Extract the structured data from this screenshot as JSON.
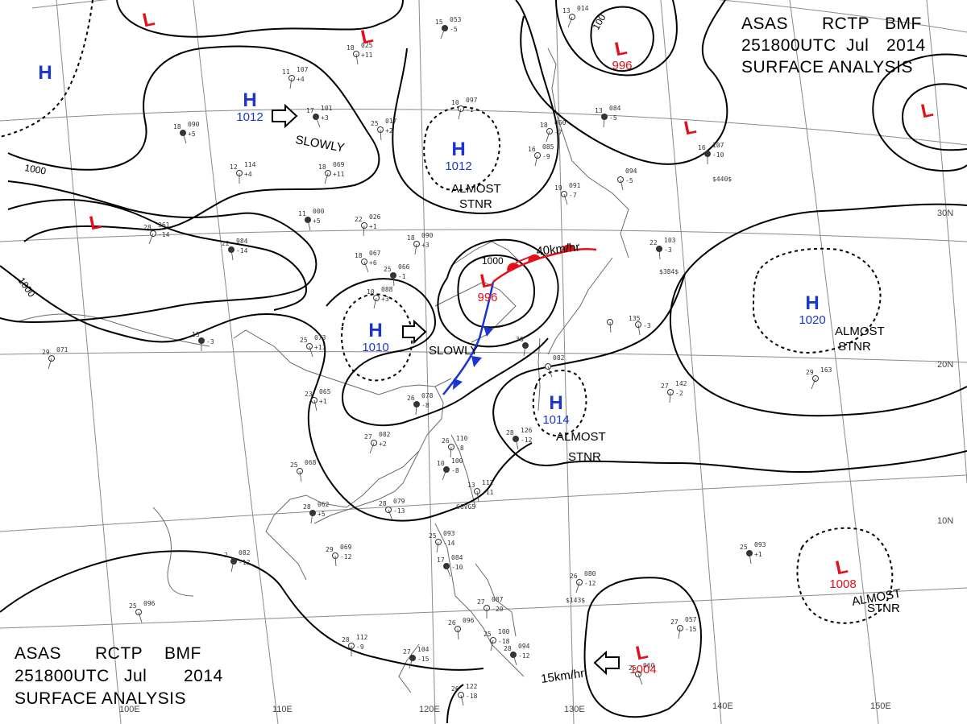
{
  "header_top": {
    "agency": "ASAS",
    "station": "RCTP",
    "office": "BMF",
    "time": "251800UTC",
    "month": "Jul",
    "year": "2014",
    "title": "SURFACE ANALYSIS"
  },
  "header_bottom": {
    "agency": "ASAS",
    "station": "RCTP",
    "office": "BMF",
    "time": "251800UTC",
    "month": "Jul",
    "year": "2014",
    "title": "SURFACE ANALYSIS"
  },
  "pressure_centers": [
    {
      "id": "h-nw",
      "type": "H",
      "value": ""
    },
    {
      "id": "l-top",
      "type": "L",
      "value": ""
    },
    {
      "id": "l-sea-of-japan",
      "type": "L",
      "value": ""
    },
    {
      "id": "h-mongolia",
      "type": "H",
      "value": "1012"
    },
    {
      "id": "h-yellow-sea",
      "type": "H",
      "value": "1012"
    },
    {
      "id": "l-north",
      "type": "L",
      "value": "996"
    },
    {
      "id": "l-right-edge",
      "type": "L",
      "value": ""
    },
    {
      "id": "l-japan-east",
      "type": "L",
      "value": ""
    },
    {
      "id": "l-tibet",
      "type": "L",
      "value": ""
    },
    {
      "id": "l-east-china",
      "type": "L",
      "value": "996"
    },
    {
      "id": "h-central-china",
      "type": "H",
      "value": "1010"
    },
    {
      "id": "h-pacific",
      "type": "H",
      "value": "1020"
    },
    {
      "id": "h-philippine-sea",
      "type": "H",
      "value": "1014"
    },
    {
      "id": "l-south-pacific",
      "type": "L",
      "value": "1008"
    },
    {
      "id": "l-south-east",
      "type": "L",
      "value": "1004"
    }
  ],
  "annotations": {
    "slowly_1": "SLOWLY",
    "slowly_2": "SLOWLY",
    "almost": "ALMOST",
    "stnr": "STNR",
    "speed_1": "40km/hr",
    "speed_2": "15km/hr"
  },
  "isobar_labels": [
    "1000",
    "1000",
    "1000",
    "100"
  ],
  "longitude_labels": [
    "100E",
    "110E",
    "120E",
    "130E",
    "140E",
    "150E"
  ],
  "latitude_labels": [
    "30N",
    "20N",
    "10N"
  ],
  "station_obs": [
    {
      "a": "15",
      "b": "053",
      "c": "-5"
    },
    {
      "a": "18",
      "b": "025",
      "c": "+11"
    },
    {
      "a": "11",
      "b": "107",
      "c": "+4"
    },
    {
      "a": "17",
      "b": "101",
      "c": "+3"
    },
    {
      "a": "25",
      "b": "017",
      "c": "+2"
    },
    {
      "a": "10",
      "b": "097",
      "c": "-1"
    },
    {
      "a": "18",
      "b": "090",
      "c": "+5"
    },
    {
      "a": "12",
      "b": "114",
      "c": "+4"
    },
    {
      "a": "18",
      "b": "069",
      "c": "+11"
    },
    {
      "a": "11",
      "b": "000",
      "c": "+5"
    },
    {
      "a": "22",
      "b": "026",
      "c": "+1"
    },
    {
      "a": "28",
      "b": "961",
      "c": "-14"
    },
    {
      "a": "22",
      "b": "984",
      "c": "-14"
    },
    {
      "a": "18",
      "b": "090",
      "c": "+3"
    },
    {
      "a": "18",
      "b": "067",
      "c": "+6"
    },
    {
      "a": "25",
      "b": "066",
      "c": "-1"
    },
    {
      "a": "10",
      "b": "088",
      "c": "+3"
    },
    {
      "a": "25",
      "b": "073",
      "c": "+11"
    },
    {
      "a": "13",
      "b": "",
      "c": "-3"
    },
    {
      "a": "29",
      "b": "071",
      "c": ""
    },
    {
      "a": "23",
      "b": "065",
      "c": "+1"
    },
    {
      "a": "26",
      "b": "078",
      "c": "-8"
    },
    {
      "a": "27",
      "b": "082",
      "c": "+2"
    },
    {
      "a": "25",
      "b": "068",
      "c": ""
    },
    {
      "a": "28",
      "b": "062",
      "c": "+5"
    },
    {
      "a": "28",
      "b": "079",
      "c": "-13"
    },
    {
      "a": "29",
      "b": "069",
      "c": "-12"
    },
    {
      "a": "2",
      "b": "082",
      "c": "-12"
    },
    {
      "a": "25",
      "b": "096",
      "c": ""
    },
    {
      "a": "28",
      "b": "112",
      "c": "-9"
    },
    {
      "a": "27",
      "b": "104",
      "c": "-15"
    },
    {
      "a": "26",
      "b": "122",
      "c": "-18"
    },
    {
      "a": "26",
      "b": "110",
      "c": "-8"
    },
    {
      "a": "10",
      "b": "100",
      "c": "-8"
    },
    {
      "a": "13",
      "b": "112",
      "c": "-11"
    },
    {
      "a": "25",
      "b": "093",
      "c": "-14"
    },
    {
      "a": "17",
      "b": "084",
      "c": "-10"
    },
    {
      "a": "26",
      "b": "096",
      "c": ""
    },
    {
      "a": "25",
      "b": "100",
      "c": "-18"
    },
    {
      "a": "28",
      "b": "094",
      "c": "-12"
    },
    {
      "a": "27",
      "b": "087",
      "c": "-20"
    },
    {
      "a": "26",
      "b": "080",
      "c": "-12"
    },
    {
      "a": "28",
      "b": "126",
      "c": "-12"
    },
    {
      "a": "27",
      "b": "142",
      "c": "-2"
    },
    {
      "a": "29",
      "b": "163",
      "c": ""
    },
    {
      "a": "25",
      "b": "093",
      "c": "+1"
    },
    {
      "a": "27",
      "b": "057",
      "c": "-15"
    },
    {
      "a": "25",
      "b": "060",
      "c": ""
    },
    {
      "a": "22",
      "b": "103",
      "c": "-3"
    },
    {
      "a": "16",
      "b": "085",
      "c": "-9"
    },
    {
      "a": "19",
      "b": "091",
      "c": "-7"
    },
    {
      "a": "16",
      "b": "107",
      "c": "-10"
    },
    {
      "a": "18",
      "b": "060",
      "c": "-7"
    },
    {
      "a": "",
      "b": "094",
      "c": "-5"
    },
    {
      "a": "13",
      "b": "084",
      "c": "-5"
    },
    {
      "a": "13",
      "b": "014",
      "c": ""
    },
    {
      "a": "135",
      "b": "",
      "c": "-3"
    },
    {
      "a": "30",
      "b": "",
      "c": ""
    },
    {
      "a": "",
      "b": "082",
      "c": ""
    },
    {
      "a": "",
      "b": "",
      "c": ""
    }
  ],
  "ship_tags": [
    "$440$",
    "$384$",
    "$143$",
    "C6VG5"
  ],
  "colors": {
    "high": "#1a35d1",
    "low": "#e3101a",
    "front_cold": "#1a35d1",
    "front_warm": "#e3101a",
    "isobar": "#000000",
    "grid": "#8a8a8a",
    "coast": "#6a6a6a"
  }
}
